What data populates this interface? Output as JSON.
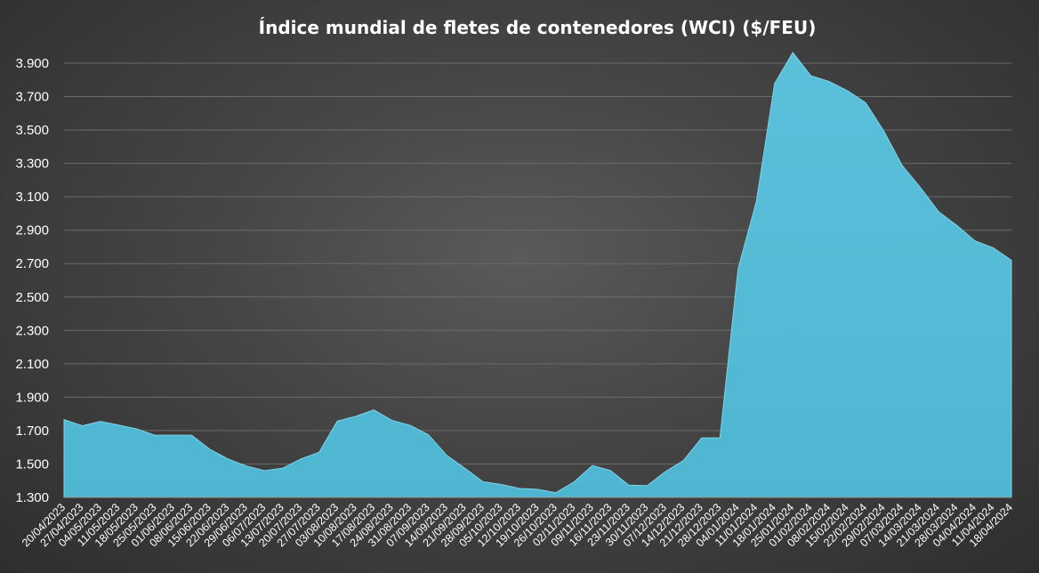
{
  "chart_data": {
    "type": "area",
    "title": "Índice mundial de fletes de contenedores (WCI) ($/FEU)",
    "xlabel": "",
    "ylabel": "",
    "ylim": [
      1300,
      3900
    ],
    "yticks": [
      1300,
      1500,
      1700,
      1900,
      2100,
      2300,
      2500,
      2700,
      2900,
      3100,
      3300,
      3500,
      3700,
      3900
    ],
    "ytick_labels": [
      "1.300",
      "1.500",
      "1.700",
      "1.900",
      "2.100",
      "2.300",
      "2.500",
      "2.700",
      "2.900",
      "3.100",
      "3.300",
      "3.500",
      "3.700",
      "3.900"
    ],
    "grid": true,
    "legend": "none",
    "fill_color": "#4fb6d2",
    "categories": [
      "20/04/2023",
      "27/04/2023",
      "04/05/2023",
      "11/05/2023",
      "18/05/2023",
      "25/05/2023",
      "01/06/2023",
      "08/06/2023",
      "15/06/2023",
      "22/06/2023",
      "29/06/2023",
      "06/07/2023",
      "13/07/2023",
      "20/07/2023",
      "27/07/2023",
      "03/08/2023",
      "10/08/2023",
      "17/08/2023",
      "24/08/2023",
      "31/08/2023",
      "07/09/2023",
      "14/09/2023",
      "21/09/2023",
      "28/09/2023",
      "05/10/2023",
      "12/10/2023",
      "19/10/2023",
      "26/10/2023",
      "02/11/2023",
      "09/11/2023",
      "16/11/2023",
      "23/11/2023",
      "30/11/2023",
      "07/12/2023",
      "14/12/2023",
      "21/12/2023",
      "28/12/2023",
      "04/01/2024",
      "11/01/2024",
      "18/01/2024",
      "25/01/2024",
      "01/02/2024",
      "08/02/2024",
      "15/02/2024",
      "22/02/2024",
      "29/02/2024",
      "07/03/2024",
      "14/03/2024",
      "21/03/2024",
      "28/03/2024",
      "04/04/2024",
      "11/04/2024",
      "18/04/2024"
    ],
    "values": [
      1765,
      1729,
      1755,
      1733,
      1710,
      1672,
      1672,
      1672,
      1588,
      1530,
      1488,
      1460,
      1475,
      1530,
      1570,
      1757,
      1785,
      1824,
      1761,
      1731,
      1675,
      1552,
      1474,
      1393,
      1377,
      1353,
      1348,
      1328,
      1393,
      1491,
      1460,
      1373,
      1370,
      1454,
      1521,
      1656,
      1656,
      2670,
      3072,
      3777,
      3964,
      3824,
      3790,
      3735,
      3663,
      3493,
      3288,
      3156,
      3011,
      2929,
      2836,
      2795,
      2720
    ]
  }
}
